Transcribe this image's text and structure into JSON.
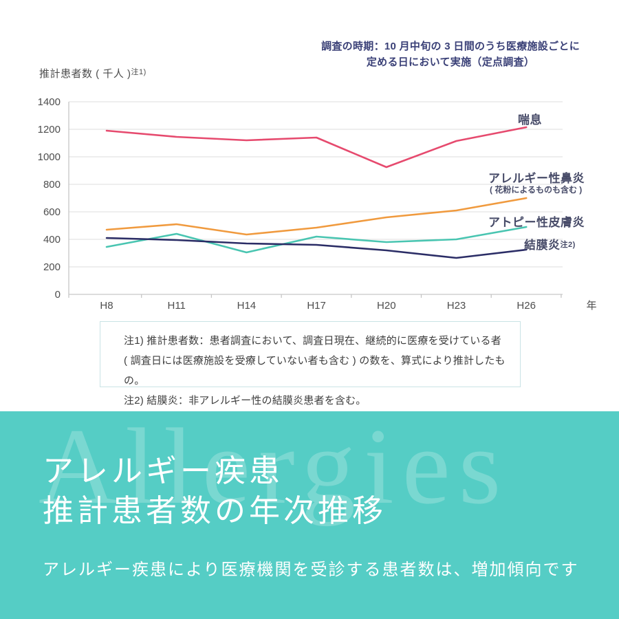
{
  "survey_note": {
    "line1": "調査の時期：10 月中旬の 3 日間のうち医療施設ごとに",
    "line2": "定める日において実施（定点調査）"
  },
  "y_axis": {
    "title": "推計患者数 ( 千人 )",
    "note_sup": "注1)"
  },
  "chart_data": {
    "type": "line",
    "categories": [
      "H8",
      "H11",
      "H14",
      "H17",
      "H20",
      "H23",
      "H26"
    ],
    "x_axis_suffix": "年",
    "ylim": [
      0,
      1400
    ],
    "ytick_step": 200,
    "grid": true,
    "legend_position": "right-of-lines",
    "series": [
      {
        "slug": "asthma",
        "name": "喘息",
        "color": "#e64a6e",
        "values": [
          1190,
          1145,
          1120,
          1140,
          925,
          1115,
          1215
        ]
      },
      {
        "slug": "allergic-rhinitis",
        "name": "アレルギー性鼻炎",
        "sub_label": "( 花粉によるものも含む )",
        "color": "#f09a3e",
        "values": [
          470,
          510,
          435,
          485,
          560,
          610,
          700
        ]
      },
      {
        "slug": "atopic-dermatitis",
        "name": "アトピー性皮膚炎",
        "color": "#49c5b1",
        "values": [
          345,
          440,
          305,
          420,
          380,
          400,
          490
        ]
      },
      {
        "slug": "conjunctivitis",
        "name": "結膜炎",
        "label_sup": "注2)",
        "color": "#2b2d66",
        "values": [
          410,
          395,
          370,
          360,
          320,
          265,
          325
        ]
      }
    ]
  },
  "notes_box": {
    "lines": [
      "注1) 推計患者数：患者調査において、調査日現在、継続的に医療を受けている者",
      "( 調査日には医療施設を受療していない者も含む ) の数を、算式により推計したもの。",
      "注2) 結膜炎：非アレルギー性の結膜炎患者を含む。"
    ]
  },
  "footer": {
    "bg_color": "#55cdc5",
    "watermark": "Allergies",
    "title_line1": "アレルギー疾患",
    "title_line2": "推計患者数の年次推移",
    "subtitle": "アレルギー疾患により医療機関を受診する患者数は、増加傾向です"
  },
  "colors": {
    "note_text": "#3a4077",
    "axis_text": "#4d4d4d",
    "grid_line": "#e4e4e4",
    "axis_line": "#c6c6c6",
    "series_label_text": "#474b68",
    "notes_border": "#c9e3e5",
    "footer_bg": "#55cdc5"
  }
}
